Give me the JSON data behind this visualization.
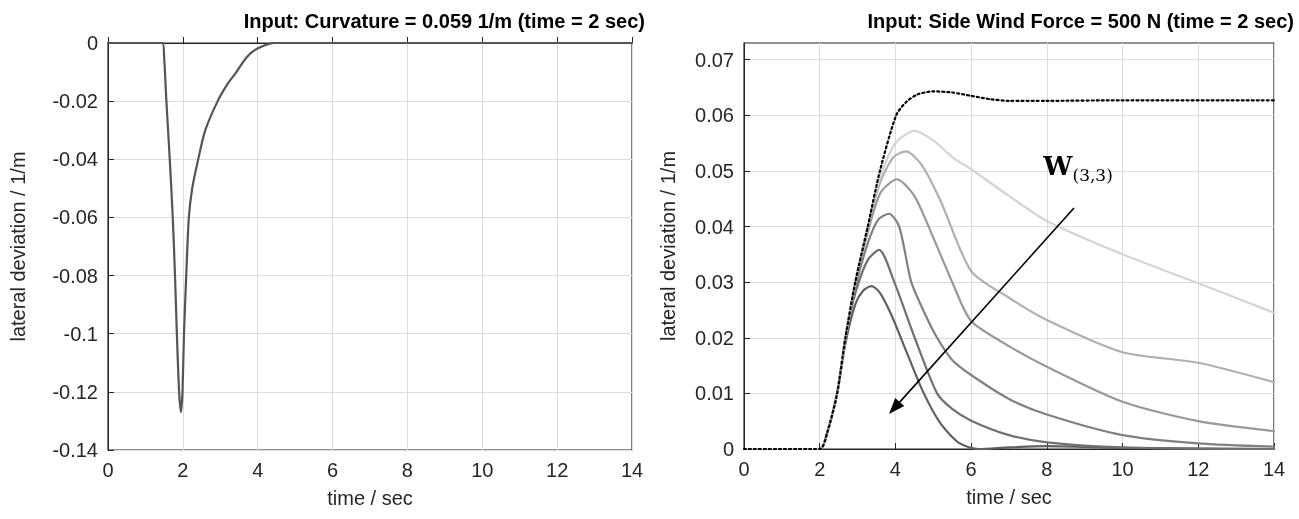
{
  "chart_data": [
    {
      "type": "line",
      "title": "Input: Curvature = 0.059 1/m (time = 2 sec)",
      "xlabel": "time / sec",
      "ylabel": "lateral deviation / 1/m",
      "x": [
        0,
        1.45,
        1.5,
        1.56,
        1.65,
        1.73,
        1.79,
        1.84,
        1.9,
        1.95,
        1.99,
        2.03,
        2.09,
        2.16,
        2.25,
        2.41,
        2.6,
        2.93,
        3.2,
        3.43,
        3.7,
        3.98,
        4.47,
        14
      ],
      "values": [
        0,
        0,
        -0.005,
        -0.02,
        -0.04,
        -0.06,
        -0.08,
        -0.1,
        -0.12,
        -0.127,
        -0.12,
        -0.1,
        -0.08,
        -0.06,
        -0.05,
        -0.04,
        -0.03,
        -0.02,
        -0.014,
        -0.01,
        -0.005,
        -0.002,
        0,
        0
      ],
      "color": "#555555",
      "line_style": "solid",
      "marker": "none",
      "xlim": [
        0,
        14
      ],
      "xticks": [
        0,
        2,
        4,
        6,
        8,
        10,
        12,
        14
      ],
      "ylim": [
        -0.14,
        0
      ],
      "yticks": [
        -0.14,
        -0.12,
        -0.1,
        -0.08,
        -0.06,
        -0.04,
        -0.02,
        0
      ],
      "grid": true
    },
    {
      "type": "line",
      "title": "Input: Side Wind Force = 500 N (time = 2 sec)",
      "xlabel": "time / sec",
      "ylabel": "lateral deviation / 1/m",
      "annotations": [
        "W$_{(3,3)}$"
      ],
      "series": [
        {
          "color": "#000000",
          "line_style": "dotted",
          "x": [
            0,
            2.0,
            2.2,
            2.46,
            2.68,
            2.94,
            3.27,
            3.59,
            4.02,
            4.3,
            4.6,
            5.0,
            5.5,
            6.0,
            6.5,
            7.0,
            8.0,
            10.0,
            14.0
          ],
          "values": [
            0,
            0,
            0.003,
            0.01,
            0.02,
            0.03,
            0.04,
            0.05,
            0.06,
            0.0625,
            0.0638,
            0.0643,
            0.0641,
            0.0635,
            0.0629,
            0.0626,
            0.0626,
            0.0627,
            0.0627
          ]
        },
        {
          "color": "#d4d4d4",
          "line_style": "solid",
          "x": [
            0,
            2.0,
            2.2,
            2.46,
            2.68,
            2.94,
            3.27,
            3.6,
            4.0,
            4.5,
            5.0,
            5.5,
            6.0,
            7.0,
            8.0,
            10.0,
            12.0,
            14.0
          ],
          "values": [
            0,
            0,
            0.003,
            0.01,
            0.02,
            0.03,
            0.04,
            0.049,
            0.055,
            0.0572,
            0.0555,
            0.0525,
            0.0503,
            0.0455,
            0.041,
            0.035,
            0.0298,
            0.0245
          ]
        },
        {
          "color": "#b0b0b0",
          "line_style": "solid",
          "x": [
            0,
            2.0,
            2.2,
            2.46,
            2.68,
            2.94,
            3.27,
            3.6,
            3.95,
            4.28,
            4.7,
            5.2,
            6.0,
            7.0,
            8.0,
            10.0,
            12.0,
            14.0
          ],
          "values": [
            0,
            0,
            0.003,
            0.01,
            0.02,
            0.03,
            0.04,
            0.048,
            0.0525,
            0.0535,
            0.051,
            0.0445,
            0.032,
            0.0272,
            0.0232,
            0.0174,
            0.0155,
            0.012
          ]
        },
        {
          "color": "#989898",
          "line_style": "solid",
          "x": [
            0,
            2.0,
            2.2,
            2.46,
            2.68,
            2.94,
            3.27,
            3.6,
            4.04,
            4.5,
            5.0,
            5.5,
            6.0,
            7.0,
            8.0,
            10.0,
            12.0,
            14.0
          ],
          "values": [
            0,
            0,
            0.003,
            0.01,
            0.02,
            0.03,
            0.039,
            0.046,
            0.0485,
            0.0455,
            0.038,
            0.03,
            0.023,
            0.0185,
            0.0148,
            0.0085,
            0.005,
            0.0032
          ]
        },
        {
          "color": "#808080",
          "line_style": "solid",
          "x": [
            0,
            2.0,
            2.2,
            2.46,
            2.68,
            2.94,
            3.27,
            3.55,
            3.83,
            4.1,
            4.42,
            4.8,
            5.1,
            5.5,
            6.0,
            7.0,
            8.0,
            10.0,
            12.0,
            14.0
          ],
          "values": [
            0,
            0,
            0.003,
            0.01,
            0.02,
            0.029,
            0.037,
            0.0413,
            0.0423,
            0.04,
            0.03,
            0.024,
            0.02,
            0.016,
            0.0133,
            0.009,
            0.0062,
            0.0025,
            0.001,
            0.0004
          ]
        },
        {
          "color": "#707070",
          "line_style": "solid",
          "x": [
            0,
            2.0,
            2.2,
            2.46,
            2.68,
            2.94,
            3.27,
            3.57,
            3.97,
            4.51,
            5.1,
            5.5,
            6.0,
            7.0,
            8.0,
            10.0,
            14.0
          ],
          "values": [
            0,
            0,
            0.003,
            0.01,
            0.02,
            0.028,
            0.034,
            0.0358,
            0.03,
            0.02,
            0.01,
            0.0072,
            0.0051,
            0.0025,
            0.0012,
            0.0003,
            0
          ]
        },
        {
          "color": "#606060",
          "line_style": "solid",
          "x": [
            0,
            2.0,
            2.2,
            2.46,
            2.68,
            2.94,
            3.15,
            3.37,
            3.6,
            3.9,
            4.32,
            4.75,
            5.2,
            5.7,
            6.2,
            7.0,
            8.0,
            10.0,
            14.0
          ],
          "values": [
            0,
            0,
            0.003,
            0.01,
            0.019,
            0.026,
            0.0285,
            0.0293,
            0.028,
            0.024,
            0.017,
            0.01,
            0.0045,
            0.001,
            0,
            0.0003,
            0.0005,
            0.0002,
            0
          ]
        }
      ],
      "marker": "none",
      "xlim": [
        0,
        14
      ],
      "xticks": [
        0,
        2,
        4,
        6,
        8,
        10,
        12,
        14
      ],
      "ylim": [
        0,
        0.073
      ],
      "yticks": [
        0,
        0.01,
        0.02,
        0.03,
        0.04,
        0.05,
        0.06,
        0.07
      ],
      "grid": true
    }
  ]
}
